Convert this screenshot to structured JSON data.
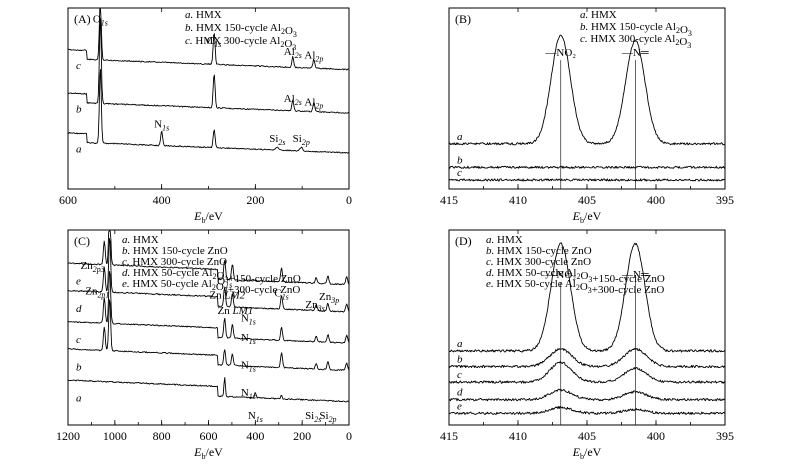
{
  "chart_data": [
    {
      "panel_label": "(A)",
      "type": "line",
      "x_unit": "E_b/eV",
      "xlabel": {
        "main": "E",
        "sub": "b",
        "rest": "/eV"
      },
      "xlim": [
        600,
        0
      ],
      "xticks": [
        "600",
        "400",
        "200",
        "0"
      ],
      "xtick_values": [
        600,
        400,
        200,
        0
      ],
      "legend": [
        {
          "letter": "a.",
          "text": "HMX",
          "formula": ""
        },
        {
          "letter": "b.",
          "text": "HMX 150-cycle Al",
          "formula": "2O3"
        },
        {
          "letter": "c.",
          "text": "HMX 300-cycle Al",
          "formula": "2O3"
        }
      ],
      "series": [
        {
          "name": "a",
          "baseline": 0.82,
          "peaks": [
            [
              531,
              0.42,
              2
            ],
            [
              400,
              0.08,
              2
            ],
            [
              288,
              0.1,
              2
            ],
            [
              153,
              0.015,
              3
            ],
            [
              102,
              0.02,
              3
            ]
          ]
        },
        {
          "name": "b",
          "baseline": 0.6,
          "peaks": [
            [
              531,
              0.48,
              2
            ],
            [
              288,
              0.19,
              2
            ],
            [
              120,
              0.06,
              2
            ],
            [
              75,
              0.05,
              2
            ]
          ]
        },
        {
          "name": "c",
          "baseline": 0.36,
          "peaks": [
            [
              531,
              0.34,
              2
            ],
            [
              288,
              0.18,
              2
            ],
            [
              120,
              0.06,
              2
            ],
            [
              75,
              0.05,
              2
            ]
          ]
        }
      ],
      "annotations": [
        {
          "main": "O",
          "sub": "1s",
          "x": 531,
          "y": 0.08
        },
        {
          "main": "C",
          "sub": "1s",
          "x": 288,
          "y": 0.2
        },
        {
          "main": "Al",
          "sub": "2s",
          "x": 120,
          "y": 0.26
        },
        {
          "main": "Al",
          "sub": "2p",
          "x": 75,
          "y": 0.28
        },
        {
          "main": "Al",
          "sub": "2s",
          "x": 120,
          "y": 0.52
        },
        {
          "main": "Al",
          "sub": "2p",
          "x": 75,
          "y": 0.54
        },
        {
          "main": "N",
          "sub": "1s",
          "x": 400,
          "y": 0.66
        },
        {
          "main": "Si",
          "sub": "2s",
          "x": 153,
          "y": 0.74
        },
        {
          "main": "Si",
          "sub": "2p",
          "x": 102,
          "y": 0.74
        }
      ]
    },
    {
      "panel_label": "(B)",
      "type": "line",
      "x_unit": "E_b/eV",
      "xlabel": {
        "main": "E",
        "sub": "b",
        "rest": "/eV"
      },
      "xlim": [
        415,
        395
      ],
      "xticks": [
        "415",
        "410",
        "405",
        "400",
        "395"
      ],
      "xtick_values": [
        415,
        410,
        405,
        400,
        395
      ],
      "legend": [
        {
          "letter": "a.",
          "text": "HMX",
          "formula": ""
        },
        {
          "letter": "b.",
          "text": "HMX 150-cycle Al",
          "formula": "2O3"
        },
        {
          "letter": "c.",
          "text": "HMX 300-cycle Al",
          "formula": "2O3"
        }
      ],
      "series": [
        {
          "name": "a",
          "baseline": 0.75,
          "peaks": [
            [
              406.9,
              0.6,
              0.7
            ],
            [
              401.5,
              0.57,
              0.7
            ]
          ]
        },
        {
          "name": "b",
          "baseline": 0.88,
          "peaks": []
        },
        {
          "name": "c",
          "baseline": 0.95,
          "peaks": []
        }
      ],
      "peak_labels": [
        {
          "text": "—NO₂",
          "x": 406.9
        },
        {
          "text": "—N═",
          "x": 401.5
        }
      ]
    },
    {
      "panel_label": "(C)",
      "type": "line",
      "x_unit": "E_b/eV",
      "xlabel": {
        "main": "E",
        "sub": "b",
        "rest": "/eV"
      },
      "xlim": [
        1200,
        0
      ],
      "xticks": [
        "1200",
        "1000",
        "800",
        "600",
        "400",
        "200",
        "0"
      ],
      "xtick_values": [
        1200,
        1000,
        800,
        600,
        400,
        200,
        0
      ],
      "legend": [
        {
          "letter": "a.",
          "text": "HMX",
          "formula": ""
        },
        {
          "letter": "b.",
          "text": "HMX 150-cycle ZnO",
          "formula": ""
        },
        {
          "letter": "c.",
          "text": "HMX 300-cycle ZnO",
          "formula": ""
        },
        {
          "letter": "d.",
          "text": "HMX 50-cycle Al",
          "formula": "2O3+150-cycle ZnO"
        },
        {
          "letter": "e.",
          "text": "HMX 50-cycle Al",
          "formula": "2O3+300-cycle ZnO"
        }
      ],
      "series": [
        {
          "name": "a",
          "baseline": 0.9,
          "peaks": [
            [
              531,
              0.1,
              3
            ],
            [
              400,
              0.03,
              3
            ],
            [
              288,
              0.02,
              3
            ]
          ]
        },
        {
          "name": "b",
          "baseline": 0.74,
          "peaks": [
            [
              1045,
              0.12,
              4
            ],
            [
              1022,
              0.27,
              4
            ],
            [
              531,
              0.08,
              4
            ],
            [
              498,
              0.06,
              4
            ],
            [
              288,
              0.08,
              4
            ],
            [
              140,
              0.03,
              4
            ],
            [
              90,
              0.04,
              4
            ],
            [
              10,
              0.04,
              4
            ]
          ]
        },
        {
          "name": "c",
          "baseline": 0.6,
          "peaks": [
            [
              1045,
              0.13,
              4
            ],
            [
              1022,
              0.28,
              4
            ],
            [
              531,
              0.1,
              4
            ],
            [
              498,
              0.07,
              4
            ],
            [
              288,
              0.07,
              4
            ],
            [
              140,
              0.03,
              4
            ],
            [
              90,
              0.04,
              4
            ],
            [
              10,
              0.04,
              4
            ]
          ]
        },
        {
          "name": "d",
          "baseline": 0.44,
          "peaks": [
            [
              1045,
              0.13,
              4
            ],
            [
              1022,
              0.29,
              4
            ],
            [
              531,
              0.1,
              4
            ],
            [
              498,
              0.07,
              4
            ],
            [
              288,
              0.07,
              4
            ],
            [
              140,
              0.03,
              4
            ],
            [
              90,
              0.04,
              4
            ],
            [
              10,
              0.04,
              4
            ]
          ]
        },
        {
          "name": "e",
          "baseline": 0.3,
          "peaks": [
            [
              1045,
              0.12,
              4
            ],
            [
              1022,
              0.3,
              4
            ],
            [
              531,
              0.1,
              4
            ],
            [
              498,
              0.08,
              4
            ],
            [
              288,
              0.07,
              4
            ],
            [
              140,
              0.03,
              4
            ],
            [
              90,
              0.04,
              4
            ],
            [
              10,
              0.04,
              4
            ]
          ]
        }
      ],
      "annotations": [
        {
          "main": "Zn",
          "sub": "2p3",
          "x": 1095,
          "y": 0.2,
          "ital": ""
        },
        {
          "main": "Zn",
          "sub": "2p1",
          "x": 1075,
          "y": 0.33,
          "ital": ""
        },
        {
          "main": "O",
          "sub": "1s",
          "x": 531,
          "y": 0.28,
          "ital": ""
        },
        {
          "main": "Zn ",
          "sub": "",
          "x": 520,
          "y": 0.35,
          "ital": "LM2"
        },
        {
          "main": "C",
          "sub": "1s",
          "x": 288,
          "y": 0.34,
          "ital": ""
        },
        {
          "main": "Zn ",
          "sub": "",
          "x": 485,
          "y": 0.43,
          "ital": "LM1"
        },
        {
          "main": "Zn",
          "sub": "3p",
          "x": 85,
          "y": 0.36,
          "ital": ""
        },
        {
          "main": "Zn",
          "sub": "3s",
          "x": 145,
          "y": 0.4,
          "ital": ""
        },
        {
          "main": "N",
          "sub": "1s",
          "x": 430,
          "y": 0.47,
          "ital": ""
        },
        {
          "main": "N",
          "sub": "1s",
          "x": 430,
          "y": 0.57,
          "ital": ""
        },
        {
          "main": "N",
          "sub": "1s",
          "x": 430,
          "y": 0.71,
          "ital": ""
        },
        {
          "main": "N",
          "sub": "1s",
          "x": 430,
          "y": 0.85,
          "ital": ""
        },
        {
          "main": "N",
          "sub": "1s",
          "x": 400,
          "y": 0.97,
          "ital": ""
        },
        {
          "main": "Si",
          "sub": "2s",
          "x": 153,
          "y": 0.97,
          "ital": ""
        },
        {
          "main": "Si",
          "sub": "2p",
          "x": 90,
          "y": 0.97,
          "ital": ""
        }
      ]
    },
    {
      "panel_label": "(D)",
      "type": "line",
      "x_unit": "E_b/eV",
      "xlabel": {
        "main": "E",
        "sub": "b",
        "rest": "/eV"
      },
      "xlim": [
        415,
        395
      ],
      "xticks": [
        "415",
        "410",
        "405",
        "400",
        "395"
      ],
      "xtick_values": [
        415,
        410,
        405,
        400,
        395
      ],
      "legend": [
        {
          "letter": "a.",
          "text": "HMX",
          "formula": ""
        },
        {
          "letter": "b.",
          "text": "HMX 150-cycle ZnO",
          "formula": ""
        },
        {
          "letter": "c.",
          "text": "HMX 300-cycle ZnO",
          "formula": ""
        },
        {
          "letter": "d.",
          "text": "HMX 50-cycle Al",
          "formula": "2O3+150-cycle ZnO"
        },
        {
          "letter": "e.",
          "text": "HMX 50-cycle Al",
          "formula": "2O3+300-cycle ZnO"
        }
      ],
      "series": [
        {
          "name": "a",
          "baseline": 0.62,
          "peaks": [
            [
              406.9,
              0.55,
              0.7
            ],
            [
              401.5,
              0.55,
              0.7
            ]
          ]
        },
        {
          "name": "b",
          "baseline": 0.7,
          "peaks": [
            [
              406.9,
              0.09,
              0.8
            ],
            [
              401.5,
              0.09,
              0.8
            ]
          ]
        },
        {
          "name": "c",
          "baseline": 0.78,
          "peaks": [
            [
              406.9,
              0.1,
              0.8
            ],
            [
              401.5,
              0.07,
              0.8
            ]
          ]
        },
        {
          "name": "d",
          "baseline": 0.87,
          "peaks": [
            [
              406.9,
              0.05,
              0.8
            ],
            [
              401.5,
              0.04,
              0.8
            ]
          ]
        },
        {
          "name": "e",
          "baseline": 0.94,
          "peaks": [
            [
              406.9,
              0.03,
              0.8
            ],
            [
              401.5,
              0.02,
              0.8
            ]
          ]
        }
      ],
      "peak_labels": [
        {
          "text": "—NO₂",
          "x": 406.9
        },
        {
          "text": "—N═",
          "x": 401.5
        }
      ]
    }
  ]
}
